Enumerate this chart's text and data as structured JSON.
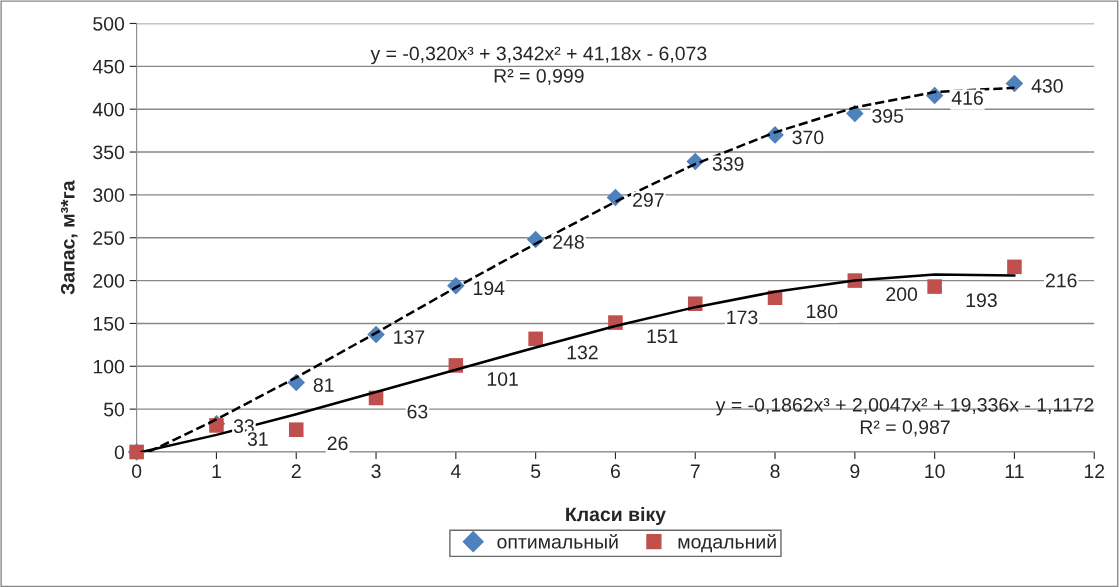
{
  "chart_data": {
    "type": "scatter",
    "xlabel": "Класи віку",
    "ylabel": "Запас, м³*га",
    "xlim": [
      0,
      12
    ],
    "xticks": [
      0,
      1,
      2,
      3,
      4,
      5,
      6,
      7,
      8,
      9,
      10,
      11,
      12
    ],
    "ylim": [
      0,
      500
    ],
    "yticks": [
      0,
      50,
      100,
      150,
      200,
      250,
      300,
      350,
      400,
      450,
      500
    ],
    "grid": "y",
    "legend": "bottom",
    "x": [
      0,
      1,
      2,
      3,
      4,
      5,
      6,
      7,
      8,
      9,
      10,
      11
    ],
    "series": [
      {
        "name": "оптимальный",
        "marker": "diamond",
        "color": "#4f81bd",
        "values": [
          0,
          33,
          81,
          137,
          194,
          248,
          297,
          339,
          370,
          395,
          416,
          430
        ],
        "value_labels": [
          null,
          "33",
          "81",
          "137",
          "194",
          "248",
          "297",
          "339",
          "370",
          "395",
          "416",
          "430"
        ]
      },
      {
        "name": "модальний",
        "marker": "square",
        "color": "#c0504d",
        "values": [
          0,
          31,
          26,
          63,
          101,
          132,
          151,
          173,
          180,
          200,
          193,
          216
        ],
        "value_labels": [
          null,
          "31",
          "26",
          "63",
          "101",
          "132",
          "151",
          "173",
          "180",
          "200",
          "193",
          "216"
        ]
      },
      {
        "type": "line",
        "color": "#000000",
        "line_style": "dashed",
        "x": [
          0.15,
          1,
          2,
          3,
          4,
          5,
          6,
          7,
          8,
          9,
          10,
          11
        ],
        "values": [
          0,
          38,
          87,
          139,
          192,
          243,
          292,
          336,
          373,
          402,
          420,
          425
        ]
      },
      {
        "type": "line",
        "color": "#000000",
        "line_style": "solid",
        "x": [
          0.06,
          1,
          2,
          3,
          4,
          5,
          6,
          7,
          8,
          9,
          10,
          11
        ],
        "values": [
          0,
          20,
          44,
          70,
          96,
          122,
          147,
          169,
          187,
          200,
          207,
          206
        ]
      }
    ],
    "annotations": [
      "y = -0,320x³ + 3,342x² + 41,18x - 6,073\nR² = 0,999",
      "y = -0,1862x³ + 2,0047x² + 19,336x - 1,1172\nR² = 0,987"
    ]
  }
}
